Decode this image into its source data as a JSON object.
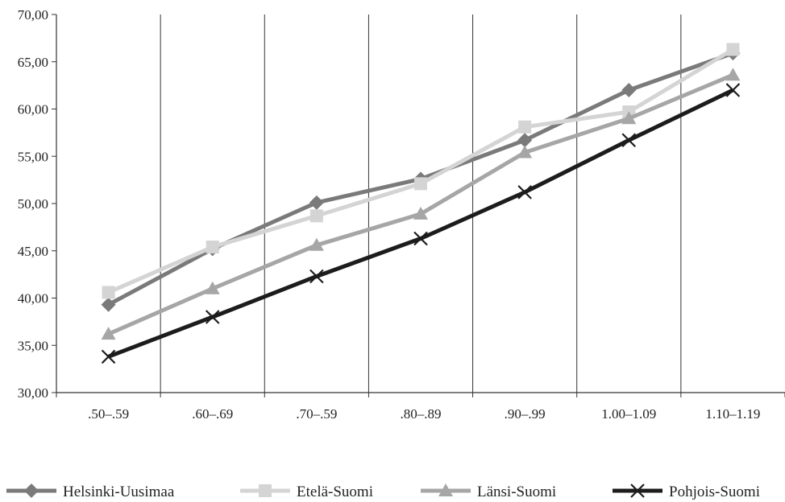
{
  "chart_data": {
    "type": "line",
    "title": "",
    "xlabel": "",
    "ylabel": "",
    "categories": [
      ".50–.59",
      ".60–.69",
      ".70–.59",
      ".80–.89",
      ".90–.99",
      "1.00–1.09",
      "1.10–1.19"
    ],
    "ylim": [
      30,
      70
    ],
    "yticks": [
      "30,00",
      "35,00",
      "40,00",
      "45,00",
      "50,00",
      "55,00",
      "60,00",
      "65,00",
      "70,00"
    ],
    "ytick_values": [
      30,
      35,
      40,
      45,
      50,
      55,
      60,
      65,
      70
    ],
    "grid": "vertical lines between categories",
    "legend_position": "bottom",
    "series": [
      {
        "name": "Helsinki-Uusimaa",
        "marker": "diamond",
        "color": "#7a7a7a",
        "values": [
          39.3,
          45.2,
          50.1,
          52.6,
          56.7,
          62.0,
          65.9
        ]
      },
      {
        "name": "Etelä-Suomi",
        "marker": "square",
        "color": "#d4d4d4",
        "values": [
          40.6,
          45.4,
          48.7,
          52.1,
          58.1,
          59.7,
          66.3
        ]
      },
      {
        "name": "Länsi-Suomi",
        "marker": "triangle",
        "color": "#a6a6a6",
        "values": [
          36.2,
          41.0,
          45.6,
          48.9,
          55.4,
          59.0,
          63.6
        ]
      },
      {
        "name": "Pohjois-Suomi",
        "marker": "x",
        "color": "#1c1c1c",
        "values": [
          33.8,
          38.0,
          42.3,
          46.3,
          51.2,
          56.7,
          62.0
        ]
      }
    ]
  }
}
